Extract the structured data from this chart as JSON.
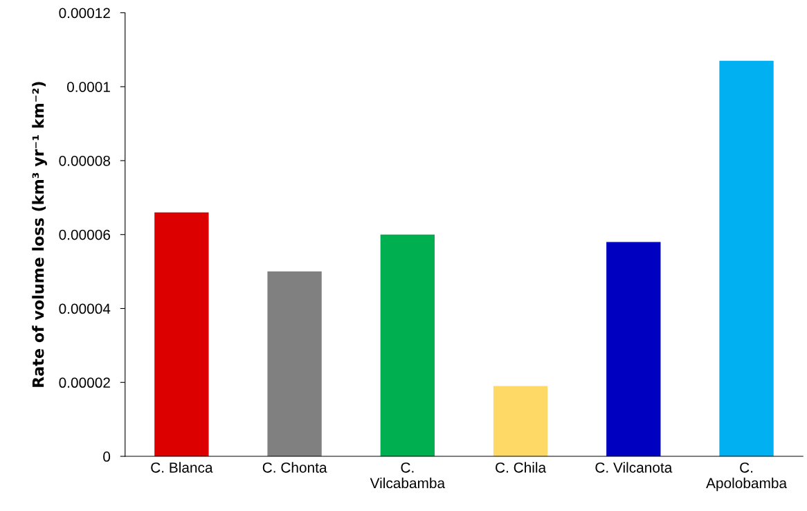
{
  "chart_data": {
    "type": "bar",
    "ylabel": "Rate of volume loss (km³ yr⁻¹ km⁻²)",
    "categories": [
      "C. Blanca",
      "C. Chonta",
      "C.\nVilcabamba",
      "C. Chila",
      "C. Vilcanota",
      "C.\nApolobamba"
    ],
    "values": [
      6.6e-05,
      5e-05,
      6e-05,
      1.9e-05,
      5.8e-05,
      0.000107
    ],
    "colors": [
      "#dc0000",
      "#808080",
      "#00b050",
      "#ffd966",
      "#0000c0",
      "#00b0f0"
    ],
    "ylim": [
      0,
      0.00012
    ],
    "yticks": [
      {
        "value": 0,
        "label": "0"
      },
      {
        "value": 2e-05,
        "label": "0.00002"
      },
      {
        "value": 4e-05,
        "label": "0.00004"
      },
      {
        "value": 6e-05,
        "label": "0.00006"
      },
      {
        "value": 8e-05,
        "label": "0.00008"
      },
      {
        "value": 0.0001,
        "label": "0.0001"
      },
      {
        "value": 0.00012,
        "label": "0.00012"
      }
    ],
    "grid": false,
    "legend": false
  }
}
